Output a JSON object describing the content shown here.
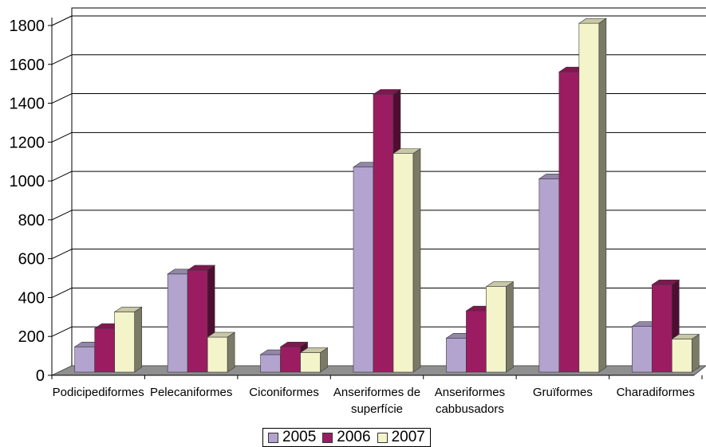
{
  "chart_data": {
    "type": "bar",
    "categories": [
      [
        "Podicipediformes"
      ],
      [
        "Pelecaniformes"
      ],
      [
        "Ciconiformes"
      ],
      [
        "Anseriformes de",
        "superfície"
      ],
      [
        "Anseriformes",
        "cabbusadors"
      ],
      [
        "Gruïformes"
      ],
      [
        "Charadiformes"
      ]
    ],
    "series": [
      {
        "name": "2005",
        "color": "#b3a3cf",
        "values": [
          130,
          505,
          90,
          1055,
          175,
          995,
          235
        ]
      },
      {
        "name": "2006",
        "color": "#9c1c62",
        "values": [
          225,
          525,
          130,
          1430,
          315,
          1545,
          450
        ]
      },
      {
        "name": "2007",
        "color": "#f4f4cb",
        "values": [
          310,
          180,
          100,
          1125,
          440,
          1795,
          170
        ]
      }
    ],
    "yticks": [
      0,
      200,
      400,
      600,
      800,
      1000,
      1200,
      1400,
      1600,
      1800
    ],
    "ylim": [
      0,
      1800
    ],
    "grid": true,
    "legend_position": "bottom"
  }
}
